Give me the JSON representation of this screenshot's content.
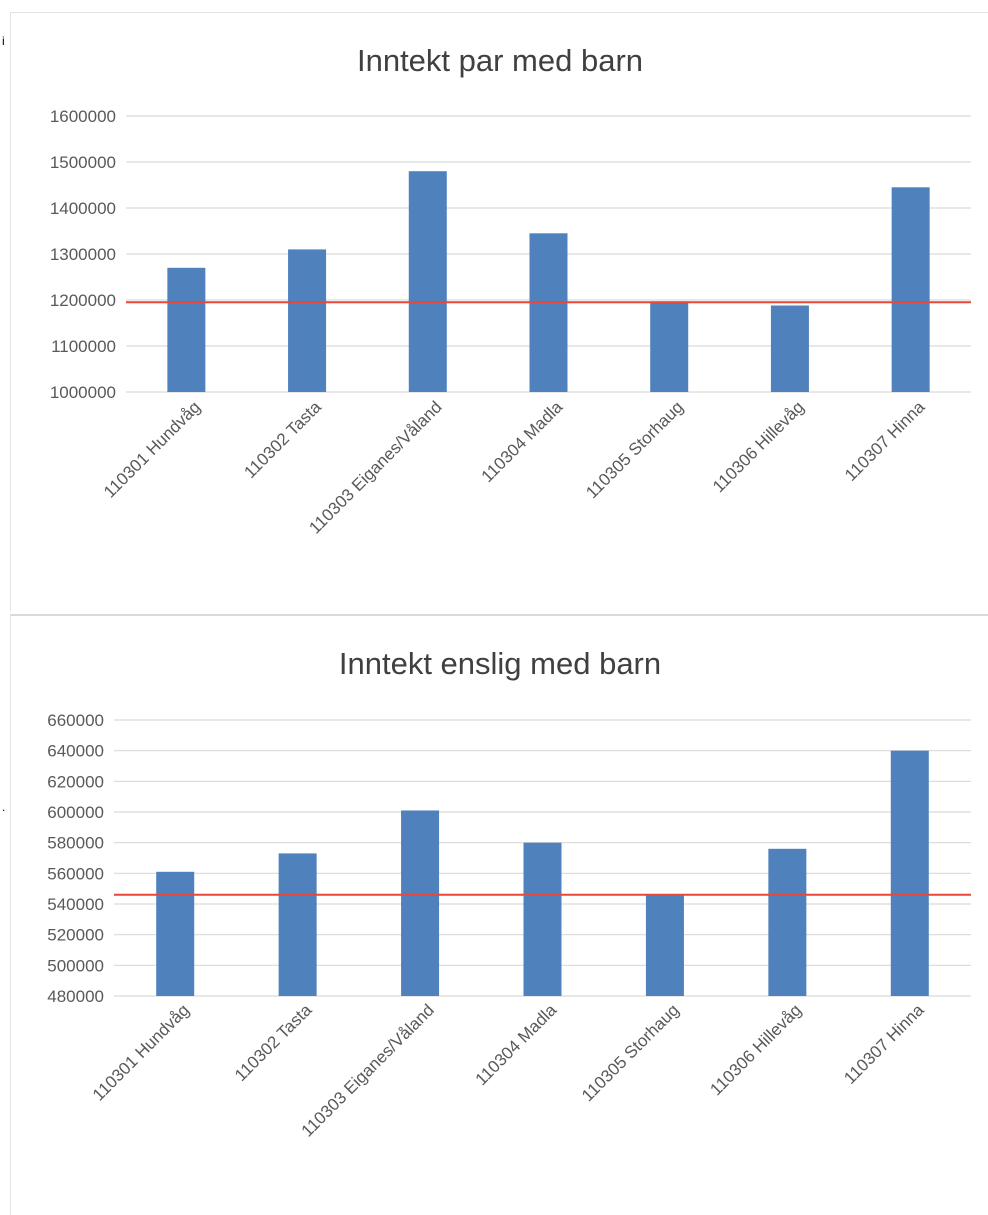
{
  "colors": {
    "bar": "#4f81bd",
    "reference": "#e8473a",
    "grid": "#d9d9d9",
    "text": "#595959",
    "title": "#404040"
  },
  "chart_data": [
    {
      "type": "bar",
      "title": "Inntekt par med barn",
      "xlabel": "",
      "ylabel": "",
      "categories": [
        "110301 Hundvåg",
        "110302 Tasta",
        "110303 Eiganes/Våland",
        "110304 Madla",
        "110305 Storhaug",
        "110306 Hillevåg",
        "110307 Hinna"
      ],
      "values": [
        1270000,
        1310000,
        1480000,
        1345000,
        1197000,
        1188000,
        1445000
      ],
      "ylim": [
        1000000,
        1600000
      ],
      "yticks": [
        1000000,
        1100000,
        1200000,
        1300000,
        1400000,
        1500000,
        1600000
      ],
      "ytick_labels": [
        "1000000",
        "1100000",
        "1200000",
        "1300000",
        "1400000",
        "1500000",
        "1600000"
      ],
      "reference_line": 1195000,
      "grid": true,
      "legend": "none"
    },
    {
      "type": "bar",
      "title": "Inntekt enslig med barn",
      "xlabel": "",
      "ylabel": "",
      "categories": [
        "110301 Hundvåg",
        "110302 Tasta",
        "110303 Eiganes/Våland",
        "110304 Madla",
        "110305 Storhaug",
        "110306 Hillevåg",
        "110307 Hinna"
      ],
      "values": [
        561000,
        573000,
        601000,
        580000,
        546000,
        576000,
        640000
      ],
      "ylim": [
        480000,
        660000
      ],
      "yticks": [
        480000,
        500000,
        520000,
        540000,
        560000,
        580000,
        600000,
        620000,
        640000,
        660000
      ],
      "ytick_labels": [
        "480000",
        "500000",
        "520000",
        "540000",
        "560000",
        "580000",
        "600000",
        "620000",
        "640000",
        "660000"
      ],
      "reference_line": 546000,
      "grid": true,
      "legend": "none"
    }
  ],
  "stray_marks": {
    "top": "i",
    "middle": "."
  }
}
